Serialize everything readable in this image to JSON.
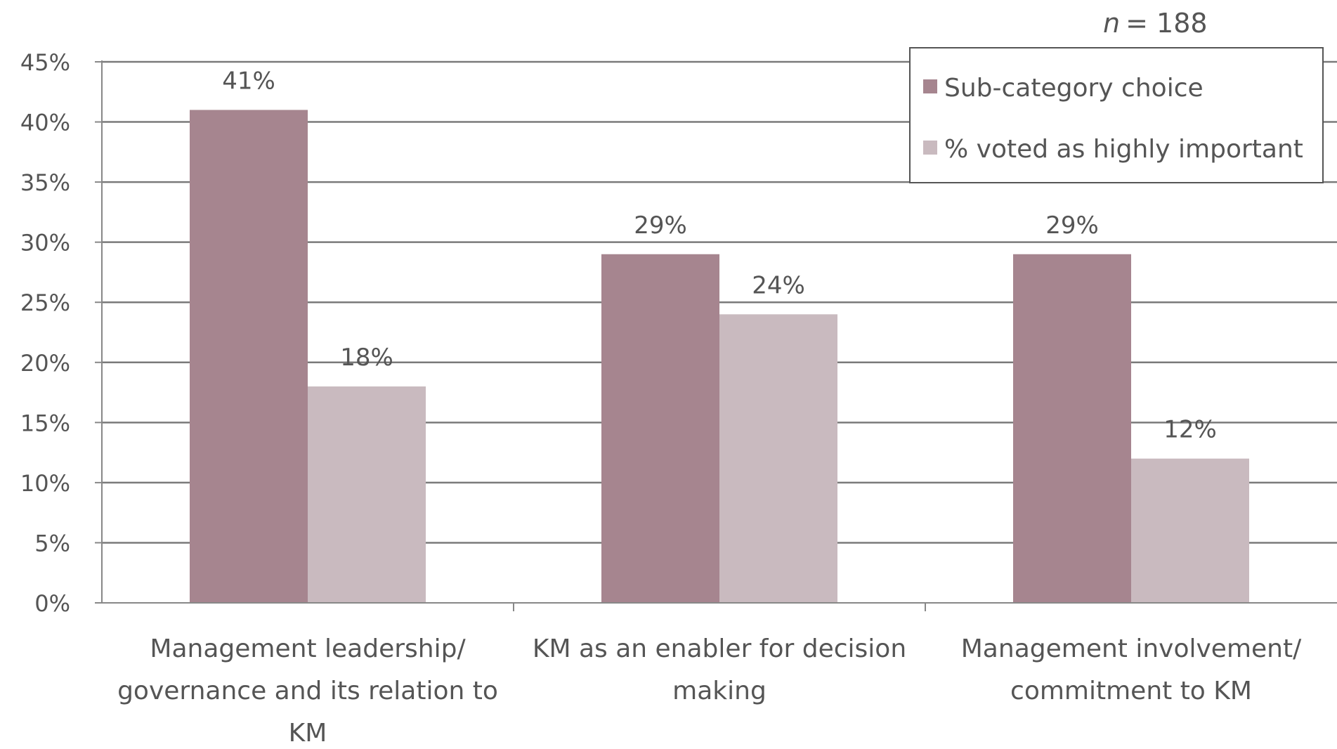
{
  "chart_data": {
    "type": "bar",
    "annotation": "n = 188",
    "annotation_prefix": "n",
    "annotation_value": "= 188",
    "categories": [
      [
        "Management leadership/",
        "governance and its relation to",
        "KM"
      ],
      [
        "KM as an enabler for decision",
        "making"
      ],
      [
        "Management involvement/",
        "commitment to KM"
      ]
    ],
    "series": [
      {
        "name": "Sub-category choice",
        "values": [
          41,
          29,
          29
        ],
        "labels": [
          "41%",
          "29%",
          "29%"
        ],
        "color": "#a6858f"
      },
      {
        "name": "% voted as highly important",
        "values": [
          18,
          24,
          12
        ],
        "labels": [
          "18%",
          "24%",
          "12%"
        ],
        "color": "#c9babf"
      }
    ],
    "ylim": [
      0,
      45
    ],
    "yticks": [
      0,
      5,
      10,
      15,
      20,
      25,
      30,
      35,
      40,
      45
    ],
    "ytick_labels": [
      "0%",
      "5%",
      "10%",
      "15%",
      "20%",
      "25%",
      "30%",
      "35%",
      "40%",
      "45%"
    ],
    "grid": true,
    "legend": "top-right",
    "gridline_color": "#7a7a7a",
    "axis_color": "#888888"
  }
}
